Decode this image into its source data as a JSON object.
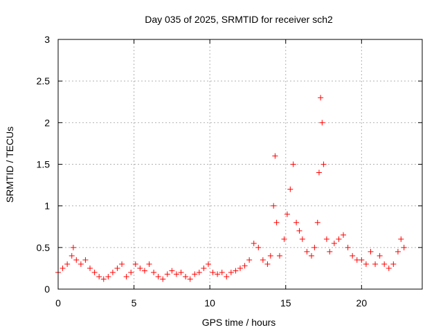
{
  "chart_data": {
    "type": "scatter",
    "title": "Day 035 of 2025, SRMTID for receiver sch2",
    "xlabel": "GPS time / hours",
    "ylabel": "SRMTID / TECUs",
    "xlim": [
      0,
      24
    ],
    "ylim": [
      0,
      3
    ],
    "xticks": [
      0,
      5,
      10,
      15,
      20
    ],
    "xtick_labels": [
      "0",
      "5",
      "10",
      "15",
      "20"
    ],
    "yticks": [
      0,
      0.5,
      1,
      1.5,
      2,
      2.5,
      3
    ],
    "ytick_labels": [
      "0",
      "0.5",
      "1",
      "1.5",
      "2",
      "2.5",
      "3"
    ],
    "grid": true,
    "marker": "+",
    "series": [
      {
        "name": "SRMTID",
        "color": "#ff0000",
        "x": [
          0.0,
          0.3,
          0.6,
          0.9,
          1.0,
          1.2,
          1.5,
          1.8,
          2.1,
          2.4,
          2.7,
          3.0,
          3.3,
          3.6,
          3.9,
          4.2,
          4.5,
          4.8,
          5.1,
          5.4,
          5.7,
          6.0,
          6.3,
          6.6,
          6.9,
          7.2,
          7.5,
          7.8,
          8.1,
          8.4,
          8.7,
          9.0,
          9.3,
          9.6,
          9.9,
          10.2,
          10.5,
          10.8,
          11.1,
          11.4,
          11.7,
          12.0,
          12.3,
          12.6,
          12.9,
          13.2,
          13.5,
          13.8,
          14.0,
          14.2,
          14.3,
          14.4,
          14.6,
          14.9,
          15.1,
          15.3,
          15.5,
          15.7,
          15.9,
          16.1,
          16.4,
          16.7,
          16.9,
          17.1,
          17.2,
          17.3,
          17.4,
          17.5,
          17.7,
          17.9,
          18.2,
          18.5,
          18.8,
          19.1,
          19.4,
          19.7,
          20.0,
          20.3,
          20.6,
          20.9,
          21.2,
          21.5,
          21.8,
          22.1,
          22.4,
          22.6,
          22.8
        ],
        "y": [
          0.2,
          0.25,
          0.3,
          0.4,
          0.5,
          0.35,
          0.3,
          0.35,
          0.25,
          0.2,
          0.15,
          0.12,
          0.15,
          0.2,
          0.25,
          0.3,
          0.15,
          0.2,
          0.3,
          0.25,
          0.22,
          0.3,
          0.2,
          0.15,
          0.12,
          0.18,
          0.22,
          0.18,
          0.2,
          0.15,
          0.12,
          0.18,
          0.2,
          0.25,
          0.3,
          0.2,
          0.18,
          0.2,
          0.15,
          0.2,
          0.22,
          0.25,
          0.28,
          0.35,
          0.55,
          0.5,
          0.35,
          0.3,
          0.4,
          1.0,
          1.6,
          0.8,
          0.4,
          0.6,
          0.9,
          1.2,
          1.5,
          0.8,
          0.7,
          0.6,
          0.45,
          0.4,
          0.5,
          0.8,
          1.4,
          2.3,
          2.0,
          1.5,
          0.6,
          0.45,
          0.55,
          0.6,
          0.65,
          0.5,
          0.4,
          0.35,
          0.35,
          0.3,
          0.45,
          0.3,
          0.4,
          0.3,
          0.25,
          0.3,
          0.45,
          0.6,
          0.5
        ]
      }
    ]
  }
}
